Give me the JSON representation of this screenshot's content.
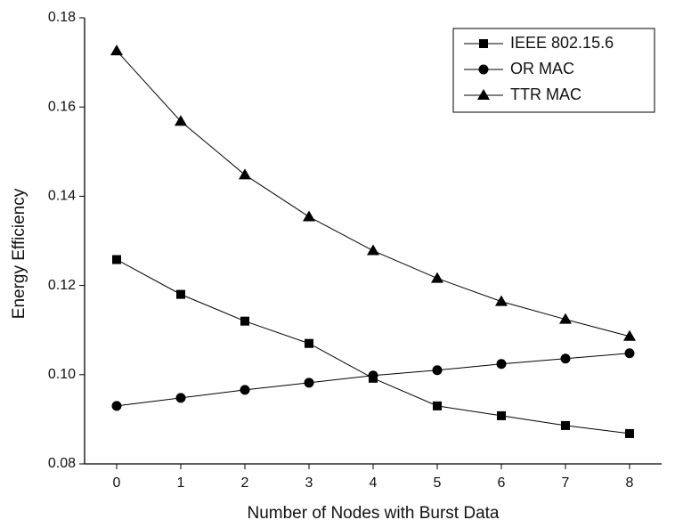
{
  "chart_data": {
    "type": "line",
    "x_label": "Number of Nodes with Burst Data",
    "y_label": "Energy Efficiency",
    "x": [
      0,
      1,
      2,
      3,
      4,
      5,
      6,
      7,
      8
    ],
    "series": [
      {
        "name": "IEEE 802.15.6",
        "color": "#000000",
        "marker": "square",
        "values": [
          0.1258,
          0.118,
          0.112,
          0.107,
          0.0992,
          0.093,
          0.0908,
          0.0886,
          0.0868
        ]
      },
      {
        "name": "OR MAC",
        "color": "#000000",
        "marker": "circle",
        "values": [
          0.093,
          0.0948,
          0.0966,
          0.0982,
          0.0998,
          0.101,
          0.1024,
          0.1036,
          0.1048
        ]
      },
      {
        "name": "TTR MAC",
        "color": "#000000",
        "marker": "triangle",
        "values": [
          0.1726,
          0.1568,
          0.1448,
          0.1354,
          0.1278,
          0.1216,
          0.1164,
          0.1124,
          0.1086
        ]
      }
    ],
    "xlim": [
      -0.5,
      8.5
    ],
    "xticks": [
      0,
      1,
      2,
      3,
      4,
      5,
      6,
      7,
      8
    ],
    "ylim": [
      0.08,
      0.18
    ],
    "yticks": [
      0.08,
      {
        "value": 0.1,
        "label": "0.10"
      },
      0.12,
      0.14,
      0.16,
      0.18
    ],
    "legend": "upper right",
    "grid": false
  }
}
